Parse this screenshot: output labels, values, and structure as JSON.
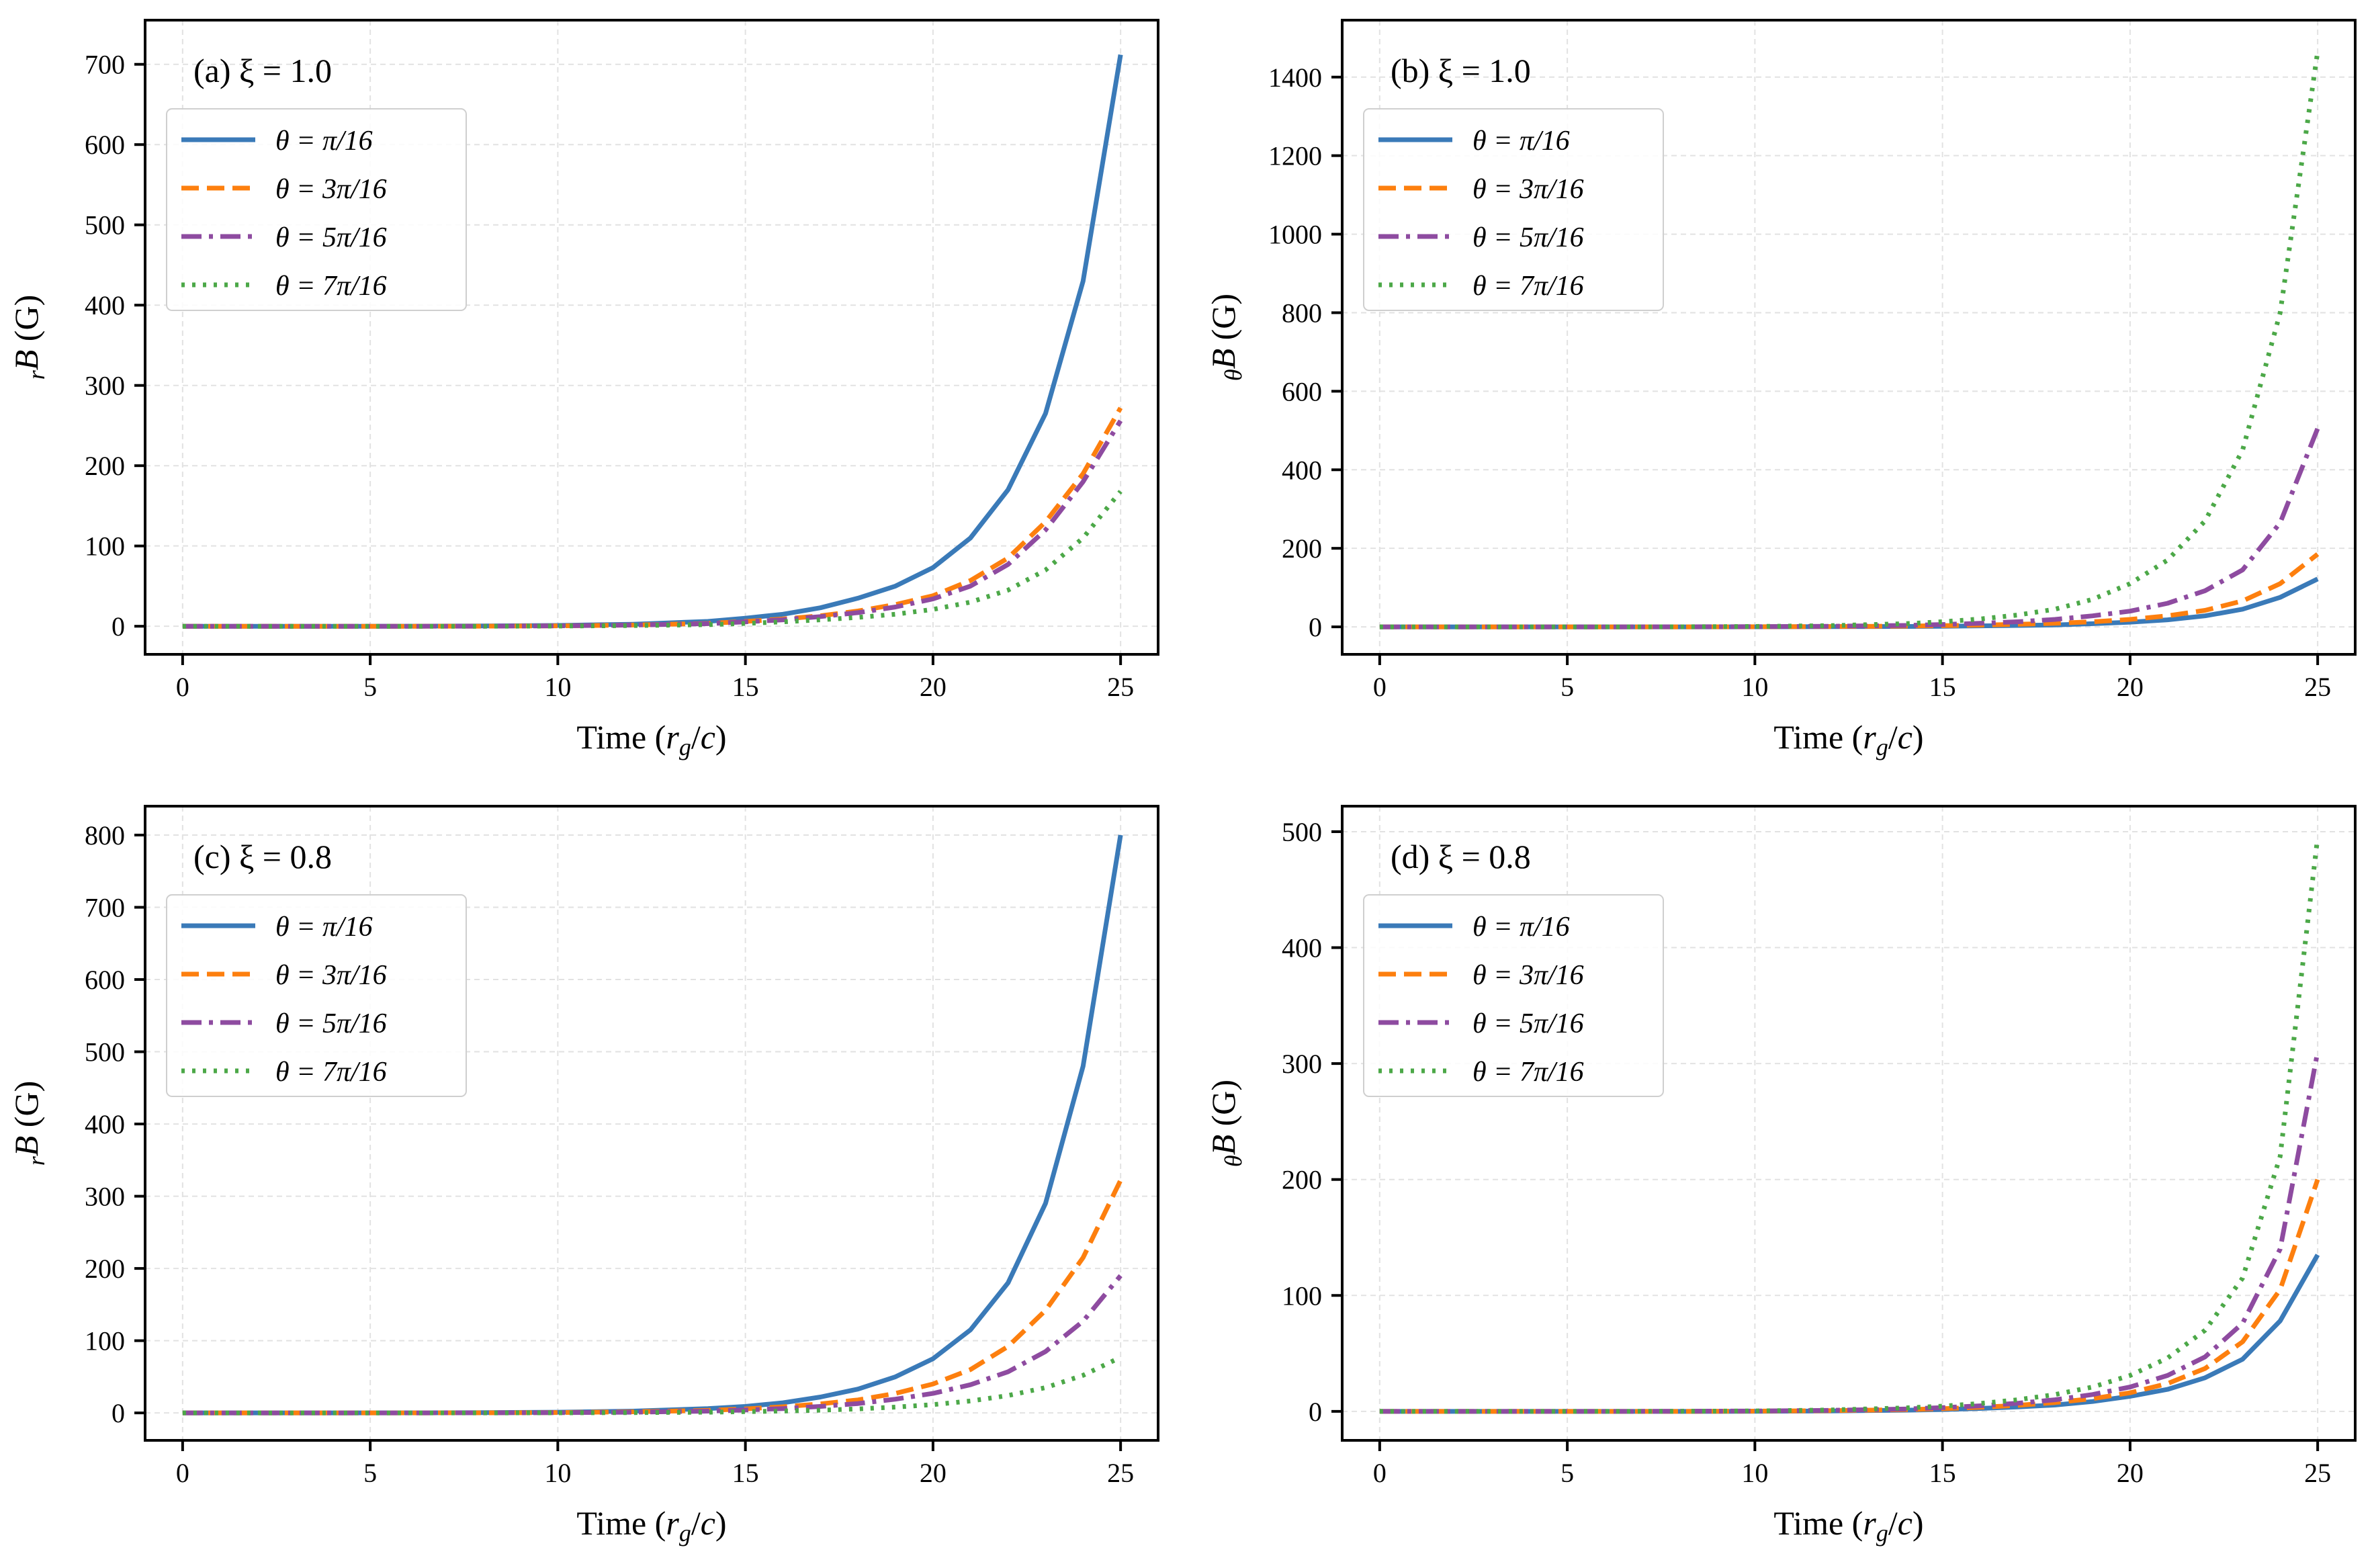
{
  "figure": {
    "series_names": [
      "θ = π/16",
      "θ = 3π/16",
      "θ = 5π/16",
      "θ = 7π/16"
    ],
    "colors": [
      "#3a7ab8",
      "#fd7f0e",
      "#8e4ba0",
      "#4ca848"
    ]
  },
  "chart_data": [
    {
      "type": "line",
      "panel_label": "(a)   ξ = 1.0",
      "xlabel": "Time (r_g/c)",
      "ylabel": "rB (G)",
      "xlim": [
        -1,
        26
      ],
      "ylim": [
        -35,
        755
      ],
      "xticks": [
        0,
        5,
        10,
        15,
        20,
        25
      ],
      "yticks": [
        0,
        100,
        200,
        300,
        400,
        500,
        600,
        700
      ],
      "grid": true,
      "legend_position": "upper-left",
      "series": [
        {
          "name": "θ = π/16",
          "style": "solid",
          "x": [
            0,
            2,
            4,
            6,
            8,
            10,
            12,
            14,
            15,
            16,
            17,
            18,
            19,
            20,
            21,
            22,
            23,
            24,
            25
          ],
          "values": [
            0,
            0,
            0,
            0.1,
            0.3,
            1,
            2.5,
            6,
            10,
            15,
            23,
            35,
            50,
            73,
            110,
            170,
            265,
            430,
            712
          ]
        },
        {
          "name": "θ = 3π/16",
          "style": "dashed",
          "x": [
            0,
            2,
            4,
            6,
            8,
            10,
            12,
            14,
            15,
            16,
            17,
            18,
            19,
            20,
            21,
            22,
            23,
            24,
            25
          ],
          "values": [
            0,
            0,
            0,
            0,
            0.1,
            0.5,
            1.5,
            3.5,
            6,
            9,
            13,
            19,
            27,
            38,
            57,
            85,
            130,
            190,
            272
          ]
        },
        {
          "name": "θ = 5π/16",
          "style": "dashdot",
          "x": [
            0,
            2,
            4,
            6,
            8,
            10,
            12,
            14,
            15,
            16,
            17,
            18,
            19,
            20,
            21,
            22,
            23,
            24,
            25
          ],
          "values": [
            0,
            0,
            0,
            0,
            0.1,
            0.5,
            1.5,
            3.2,
            5.5,
            8,
            12,
            17,
            24,
            34,
            50,
            77,
            120,
            180,
            256
          ]
        },
        {
          "name": "θ = 7π/16",
          "style": "dotted",
          "x": [
            0,
            2,
            4,
            6,
            8,
            10,
            12,
            14,
            15,
            16,
            17,
            18,
            19,
            20,
            21,
            22,
            23,
            24,
            25
          ],
          "values": [
            0,
            0,
            0,
            0,
            0,
            0.2,
            0.8,
            2,
            3.5,
            5.5,
            8,
            11,
            15,
            21,
            30,
            45,
            70,
            110,
            168
          ]
        }
      ]
    },
    {
      "type": "line",
      "panel_label": "(b)   ξ = 1.0",
      "xlabel": "Time (r_g/c)",
      "ylabel": "θB (G)",
      "xlim": [
        -1,
        26
      ],
      "ylim": [
        -70,
        1545
      ],
      "xticks": [
        0,
        5,
        10,
        15,
        20,
        25
      ],
      "yticks": [
        0,
        200,
        400,
        600,
        800,
        1000,
        1200,
        1400
      ],
      "grid": true,
      "legend_position": "upper-left",
      "series": [
        {
          "name": "θ = π/16",
          "style": "solid",
          "x": [
            0,
            2,
            4,
            6,
            8,
            10,
            12,
            14,
            15,
            16,
            17,
            18,
            19,
            20,
            21,
            22,
            23,
            24,
            25
          ],
          "values": [
            0,
            0,
            0,
            0,
            0,
            0.2,
            0.5,
            1,
            1.5,
            2.5,
            3.5,
            5,
            8,
            12,
            18,
            28,
            45,
            75,
            122
          ]
        },
        {
          "name": "θ = 3π/16",
          "style": "dashed",
          "x": [
            0,
            2,
            4,
            6,
            8,
            10,
            12,
            14,
            15,
            16,
            17,
            18,
            19,
            20,
            21,
            22,
            23,
            24,
            25
          ],
          "values": [
            0,
            0,
            0,
            0,
            0,
            0.3,
            0.8,
            1.8,
            3,
            4.5,
            6.5,
            9,
            13,
            19,
            28,
            42,
            66,
            110,
            185
          ]
        },
        {
          "name": "θ = 5π/16",
          "style": "dashdot",
          "x": [
            0,
            2,
            4,
            6,
            8,
            10,
            12,
            14,
            15,
            16,
            17,
            18,
            19,
            20,
            21,
            22,
            23,
            24,
            25
          ],
          "values": [
            0,
            0,
            0,
            0,
            0.1,
            0.5,
            1.5,
            3.5,
            6,
            9,
            13,
            19,
            28,
            40,
            60,
            92,
            145,
            265,
            505
          ]
        },
        {
          "name": "θ = 7π/16",
          "style": "dotted",
          "x": [
            0,
            2,
            4,
            6,
            8,
            10,
            12,
            14,
            15,
            16,
            17,
            18,
            19,
            20,
            21,
            22,
            23,
            24,
            25
          ],
          "values": [
            0,
            0,
            0,
            0,
            0.2,
            1,
            3,
            8,
            13,
            20,
            30,
            45,
            70,
            110,
            170,
            270,
            450,
            800,
            1465
          ]
        }
      ]
    },
    {
      "type": "line",
      "panel_label": "(c)   ξ = 0.8",
      "xlabel": "Time (r_g/c)",
      "ylabel": "rB (G)",
      "xlim": [
        -1,
        26
      ],
      "ylim": [
        -38,
        840
      ],
      "xticks": [
        0,
        5,
        10,
        15,
        20,
        25
      ],
      "yticks": [
        0,
        100,
        200,
        300,
        400,
        500,
        600,
        700,
        800
      ],
      "grid": true,
      "legend_position": "upper-left",
      "series": [
        {
          "name": "θ = π/16",
          "style": "solid",
          "x": [
            0,
            2,
            4,
            6,
            8,
            10,
            12,
            14,
            15,
            16,
            17,
            18,
            19,
            20,
            21,
            22,
            23,
            24,
            25
          ],
          "values": [
            0,
            0,
            0,
            0.1,
            0.3,
            1,
            2.5,
            6,
            9,
            14,
            22,
            33,
            50,
            75,
            115,
            180,
            290,
            480,
            800
          ]
        },
        {
          "name": "θ = 3π/16",
          "style": "dashed",
          "x": [
            0,
            2,
            4,
            6,
            8,
            10,
            12,
            14,
            15,
            16,
            17,
            18,
            19,
            20,
            21,
            22,
            23,
            24,
            25
          ],
          "values": [
            0,
            0,
            0,
            0,
            0.1,
            0.5,
            1.5,
            3.5,
            5.5,
            8.5,
            12.5,
            18,
            27,
            40,
            60,
            92,
            142,
            215,
            322
          ]
        },
        {
          "name": "θ = 5π/16",
          "style": "dashdot",
          "x": [
            0,
            2,
            4,
            6,
            8,
            10,
            12,
            14,
            15,
            16,
            17,
            18,
            19,
            20,
            21,
            22,
            23,
            24,
            25
          ],
          "values": [
            0,
            0,
            0,
            0,
            0.1,
            0.3,
            1,
            2.5,
            4,
            6,
            9,
            13,
            19,
            27,
            39,
            57,
            85,
            127,
            190
          ]
        },
        {
          "name": "θ = 7π/16",
          "style": "dotted",
          "x": [
            0,
            2,
            4,
            6,
            8,
            10,
            12,
            14,
            15,
            16,
            17,
            18,
            19,
            20,
            21,
            22,
            23,
            24,
            25
          ],
          "values": [
            0,
            0,
            0,
            0,
            0,
            0.1,
            0.4,
            1,
            1.7,
            2.6,
            3.8,
            5.5,
            8,
            11.5,
            16.5,
            24,
            35,
            52,
            77
          ]
        }
      ]
    },
    {
      "type": "line",
      "panel_label": "(d)   ξ = 0.8",
      "xlabel": "Time (r_g/c)",
      "ylabel": "θB (G)",
      "xlim": [
        -1,
        26
      ],
      "ylim": [
        -25,
        522
      ],
      "xticks": [
        0,
        5,
        10,
        15,
        20,
        25
      ],
      "yticks": [
        0,
        100,
        200,
        300,
        400,
        500
      ],
      "grid": true,
      "legend_position": "upper-left",
      "series": [
        {
          "name": "θ = π/16",
          "style": "solid",
          "x": [
            0,
            2,
            4,
            6,
            8,
            10,
            12,
            14,
            15,
            16,
            17,
            18,
            19,
            20,
            21,
            22,
            23,
            24,
            25
          ],
          "values": [
            0,
            0,
            0,
            0,
            0,
            0.1,
            0.4,
            1,
            1.6,
            2.5,
            3.8,
            5.5,
            8.5,
            13,
            19,
            29,
            45,
            78,
            135
          ]
        },
        {
          "name": "θ = 3π/16",
          "style": "dashed",
          "x": [
            0,
            2,
            4,
            6,
            8,
            10,
            12,
            14,
            15,
            16,
            17,
            18,
            19,
            20,
            21,
            22,
            23,
            24,
            25
          ],
          "values": [
            0,
            0,
            0,
            0,
            0,
            0.2,
            0.6,
            1.5,
            2.3,
            3.5,
            5.2,
            7.6,
            11,
            16,
            24,
            37,
            60,
            105,
            200
          ]
        },
        {
          "name": "θ = 5π/16",
          "style": "dashdot",
          "x": [
            0,
            2,
            4,
            6,
            8,
            10,
            12,
            14,
            15,
            16,
            17,
            18,
            19,
            20,
            21,
            22,
            23,
            24,
            25
          ],
          "values": [
            0,
            0,
            0,
            0,
            0.1,
            0.3,
            0.9,
            2,
            3.2,
            4.8,
            7,
            10,
            14.5,
            21,
            31,
            47,
            76,
            140,
            310
          ]
        },
        {
          "name": "θ = 7π/16",
          "style": "dotted",
          "x": [
            0,
            2,
            4,
            6,
            8,
            10,
            12,
            14,
            15,
            16,
            17,
            18,
            19,
            20,
            21,
            22,
            23,
            24,
            25
          ],
          "values": [
            0,
            0,
            0,
            0,
            0.1,
            0.4,
            1.2,
            3,
            4.5,
            6.8,
            10,
            14.5,
            21,
            31,
            46,
            70,
            115,
            220,
            495
          ]
        }
      ]
    }
  ]
}
